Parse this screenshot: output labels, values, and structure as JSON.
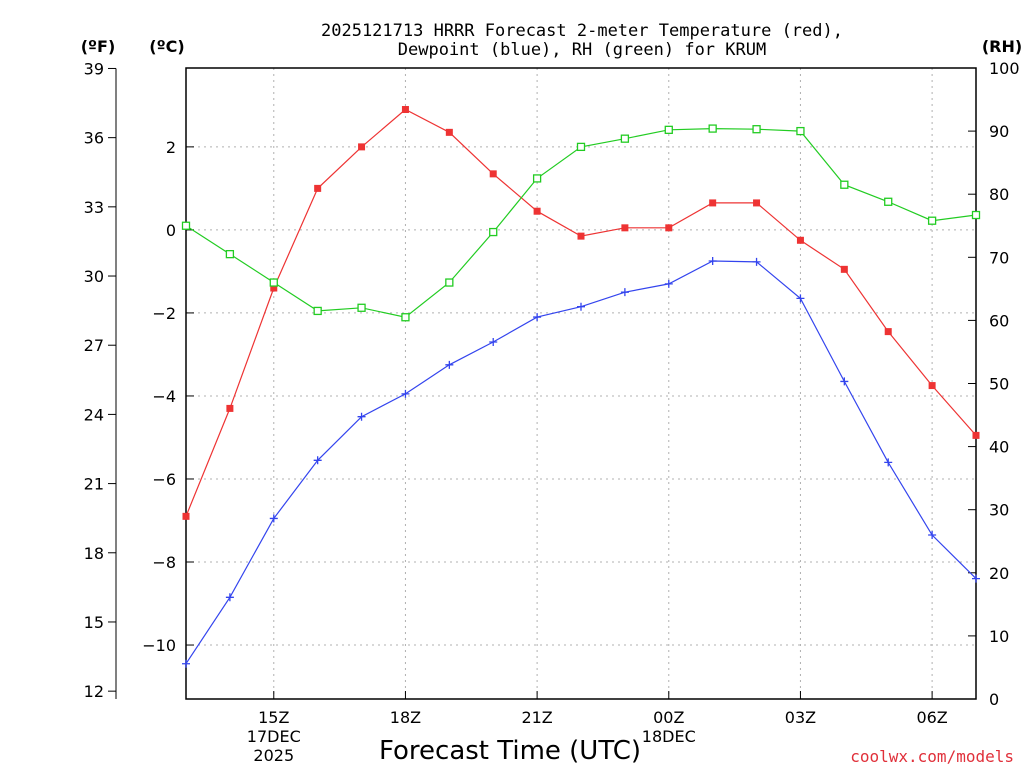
{
  "chart_data": {
    "type": "line",
    "title_line1": "2025121713 HRRR Forecast 2-meter Temperature (red),",
    "title_line2": "Dewpoint (blue), RH (green) for KRUM",
    "xlabel": "Forecast Time (UTC)",
    "credit": "coolwx.com/models",
    "x_hours": [
      13,
      14,
      15,
      16,
      17,
      18,
      19,
      20,
      21,
      22,
      23,
      24,
      25,
      26,
      27,
      28,
      29,
      30,
      31
    ],
    "xlim": [
      13,
      31
    ],
    "x_ticks": [
      {
        "hour": 15,
        "lines": [
          "15Z",
          "17DEC",
          "2025"
        ]
      },
      {
        "hour": 18,
        "lines": [
          "18Z"
        ]
      },
      {
        "hour": 21,
        "lines": [
          "21Z"
        ]
      },
      {
        "hour": 24,
        "lines": [
          "00Z",
          "18DEC"
        ]
      },
      {
        "hour": 27,
        "lines": [
          "03Z"
        ]
      },
      {
        "hour": 30,
        "lines": [
          "06Z"
        ]
      }
    ],
    "axis_celsius": {
      "unit_label": "(ºC)",
      "ylim": [
        -11.3,
        3.9
      ],
      "ticks": [
        -10,
        -8,
        -6,
        -4,
        -2,
        0,
        2
      ],
      "tick_labels": [
        "−10",
        "−8",
        "−6",
        "−4",
        "−2",
        "0",
        "2"
      ]
    },
    "axis_fahrenheit": {
      "unit_label": "(ºF)",
      "ticks": [
        12,
        15,
        18,
        21,
        24,
        27,
        30,
        33,
        36,
        39
      ]
    },
    "axis_rh": {
      "unit_label": "(RH)",
      "ylim": [
        0,
        100
      ],
      "ticks": [
        0,
        10,
        20,
        30,
        40,
        50,
        60,
        70,
        80,
        90,
        100
      ]
    },
    "series": [
      {
        "name": "Temperature",
        "axis": "celsius",
        "color": "#ee3333",
        "marker": "filled-square",
        "values": [
          -6.9,
          -4.3,
          -1.4,
          1.0,
          2.0,
          2.9,
          2.35,
          1.35,
          0.45,
          -0.15,
          0.05,
          0.05,
          0.65,
          0.65,
          -0.25,
          -0.95,
          -2.45,
          -3.75,
          -4.95
        ]
      },
      {
        "name": "Dewpoint",
        "axis": "celsius",
        "color": "#3344ee",
        "marker": "plus",
        "values": [
          -10.45,
          -8.85,
          -6.95,
          -5.55,
          -4.5,
          -3.95,
          -3.25,
          -2.7,
          -2.1,
          -1.85,
          -1.5,
          -1.3,
          -0.75,
          -0.77,
          -1.65,
          -3.65,
          -5.6,
          -7.35,
          -8.4
        ]
      },
      {
        "name": "RH",
        "axis": "rh",
        "color": "#22cc22",
        "marker": "open-square",
        "values": [
          75,
          70.5,
          66,
          61.5,
          62,
          60.5,
          66,
          74,
          82.5,
          87.5,
          88.8,
          90.2,
          90.4,
          90.3,
          90,
          81.5,
          78.8,
          75.8,
          76.7
        ]
      }
    ]
  }
}
